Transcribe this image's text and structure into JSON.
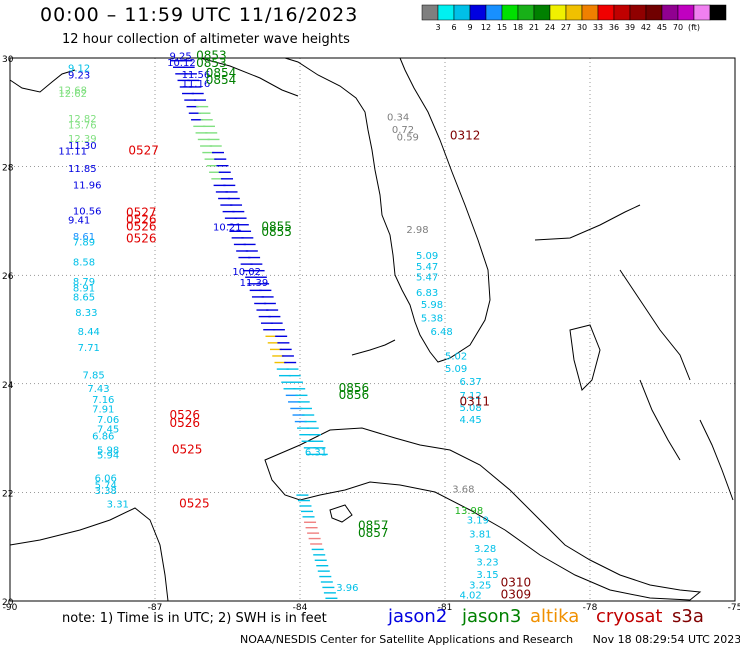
{
  "title": "00:00  –  11:59 UTC 11/16/2023",
  "subtitle": "12 hour collection of altimeter wave heights",
  "colorbar": {
    "colors": [
      "#7f7f7f",
      "#00f0f0",
      "#00c0e8",
      "#0000e0",
      "#1890ff",
      "#00e000",
      "#18b018",
      "#008000",
      "#f0f000",
      "#f0c000",
      "#f08000",
      "#f00000",
      "#c00000",
      "#900000",
      "#700000",
      "#900090",
      "#c000c0",
      "#f080f0",
      "#000000"
    ],
    "labels": [
      "3",
      "6",
      "9",
      "12",
      "15",
      "18",
      "21",
      "24",
      "27",
      "30",
      "33",
      "36",
      "39",
      "42",
      "45",
      "70",
      "(ft)"
    ]
  },
  "axes": {
    "lat_ticks": [
      "30",
      "28",
      "26",
      "24",
      "22",
      "20"
    ],
    "lon_ticks": [
      "-90",
      "-87",
      "-84",
      "-81",
      "-78",
      "-75"
    ],
    "grid": true
  },
  "note": "note:  1) Time is in UTC;  2) SWH is in feet",
  "legend": [
    {
      "label": "jason2",
      "color": "#0000e0"
    },
    {
      "label": "jason3",
      "color": "#008000"
    },
    {
      "label": "altika",
      "color": "#f09000"
    },
    {
      "label": "cryosat",
      "color": "#c00000"
    },
    {
      "label": "s3a",
      "color": "#800000"
    }
  ],
  "footer": {
    "source": "NOAA/NESDIS Center for Satellite Applications and Research",
    "timestamp": "Nov 18 08:29:54 UTC 2023"
  },
  "chart_data": {
    "type": "map",
    "region": {
      "lon_range": [
        -90,
        -75
      ],
      "lat_range": [
        20,
        30
      ]
    },
    "pass_times": [
      {
        "text": "0853",
        "lon": -86.15,
        "lat": 29.97,
        "color": "#008000"
      },
      {
        "text": "0853",
        "lon": -86.15,
        "lat": 29.83,
        "color": "#008000"
      },
      {
        "text": "0854",
        "lon": -85.95,
        "lat": 29.65,
        "color": "#008000"
      },
      {
        "text": "0854",
        "lon": -85.95,
        "lat": 29.52,
        "color": "#008000"
      },
      {
        "text": "0527",
        "lon": -87.55,
        "lat": 28.22,
        "color": "#e00000"
      },
      {
        "text": "0527",
        "lon": -87.6,
        "lat": 27.08,
        "color": "#e00000"
      },
      {
        "text": "0526",
        "lon": -87.6,
        "lat": 26.95,
        "color": "#e00000"
      },
      {
        "text": "0526",
        "lon": -87.6,
        "lat": 26.82,
        "color": "#e00000"
      },
      {
        "text": "0526",
        "lon": -87.6,
        "lat": 26.6,
        "color": "#e00000"
      },
      {
        "text": "0855",
        "lon": -84.8,
        "lat": 26.82,
        "color": "#008000"
      },
      {
        "text": "0855",
        "lon": -84.8,
        "lat": 26.72,
        "color": "#008000"
      },
      {
        "text": "0526",
        "lon": -86.7,
        "lat": 23.35,
        "color": "#e00000"
      },
      {
        "text": "0526",
        "lon": -86.7,
        "lat": 23.2,
        "color": "#e00000"
      },
      {
        "text": "0525",
        "lon": -86.65,
        "lat": 22.72,
        "color": "#e00000"
      },
      {
        "text": "0525",
        "lon": -86.5,
        "lat": 21.72,
        "color": "#e00000"
      },
      {
        "text": "0856",
        "lon": -83.2,
        "lat": 23.85,
        "color": "#008000"
      },
      {
        "text": "0856",
        "lon": -83.2,
        "lat": 23.72,
        "color": "#008000"
      },
      {
        "text": "0857",
        "lon": -82.8,
        "lat": 21.32,
        "color": "#008000"
      },
      {
        "text": "0857",
        "lon": -82.8,
        "lat": 21.18,
        "color": "#008000"
      },
      {
        "text": "0312",
        "lon": -80.9,
        "lat": 28.5,
        "color": "#800000"
      },
      {
        "text": "0311",
        "lon": -80.7,
        "lat": 23.6,
        "color": "#800000"
      },
      {
        "text": "0310",
        "lon": -79.85,
        "lat": 20.27,
        "color": "#800000"
      },
      {
        "text": "0309",
        "lon": -79.85,
        "lat": 20.05,
        "color": "#800000"
      }
    ],
    "wave_heights": [
      {
        "text": "9.25",
        "lon": -86.7,
        "lat": 29.97,
        "color": "#0000e0"
      },
      {
        "text": "10.12",
        "lon": -86.75,
        "lat": 29.85,
        "color": "#0000e0"
      },
      {
        "text": "9.12",
        "lon": -88.8,
        "lat": 29.75,
        "color": "#00c0e8"
      },
      {
        "text": "9.23",
        "lon": -88.8,
        "lat": 29.62,
        "color": "#0000e0"
      },
      {
        "text": "11.56",
        "lon": -86.45,
        "lat": 29.63,
        "color": "#0000e0"
      },
      {
        "text": "11.16",
        "lon": -86.45,
        "lat": 29.47,
        "color": "#0000e0"
      },
      {
        "text": "12.68",
        "lon": -89.0,
        "lat": 29.35,
        "color": "#80e080"
      },
      {
        "text": "12.62",
        "lon": -89.0,
        "lat": 29.28,
        "color": "#80e080"
      },
      {
        "text": "12.82",
        "lon": -88.8,
        "lat": 28.82,
        "color": "#80e080"
      },
      {
        "text": "13.76",
        "lon": -88.8,
        "lat": 28.7,
        "color": "#80e080"
      },
      {
        "text": "12.39",
        "lon": -88.8,
        "lat": 28.45,
        "color": "#80e080"
      },
      {
        "text": "11.30",
        "lon": -88.8,
        "lat": 28.32,
        "color": "#0000e0"
      },
      {
        "text": "11.11",
        "lon": -89.0,
        "lat": 28.22,
        "color": "#0000e0"
      },
      {
        "text": "11.85",
        "lon": -88.8,
        "lat": 27.9,
        "color": "#0000e0"
      },
      {
        "text": "11.96",
        "lon": -88.7,
        "lat": 27.6,
        "color": "#0000e0"
      },
      {
        "text": "10.56",
        "lon": -88.7,
        "lat": 27.12,
        "color": "#0000e0"
      },
      {
        "text": "9.41",
        "lon": -88.8,
        "lat": 26.95,
        "color": "#0000e0"
      },
      {
        "text": "8.61",
        "lon": -88.7,
        "lat": 26.65,
        "color": "#1890ff"
      },
      {
        "text": "7.89",
        "lon": -88.7,
        "lat": 26.55,
        "color": "#00c0e8"
      },
      {
        "text": "8.58",
        "lon": -88.7,
        "lat": 26.18,
        "color": "#00c0e8"
      },
      {
        "text": "8.79",
        "lon": -88.7,
        "lat": 25.82,
        "color": "#00c0e8"
      },
      {
        "text": "8.91",
        "lon": -88.7,
        "lat": 25.7,
        "color": "#00c0e8"
      },
      {
        "text": "8.65",
        "lon": -88.7,
        "lat": 25.53,
        "color": "#00c0e8"
      },
      {
        "text": "8.33",
        "lon": -88.65,
        "lat": 25.25,
        "color": "#00c0e8"
      },
      {
        "text": "8.44",
        "lon": -88.6,
        "lat": 24.9,
        "color": "#00c0e8"
      },
      {
        "text": "7.71",
        "lon": -88.6,
        "lat": 24.6,
        "color": "#00c0e8"
      },
      {
        "text": "7.85",
        "lon": -88.5,
        "lat": 24.1,
        "color": "#00c0e8"
      },
      {
        "text": "7.43",
        "lon": -88.4,
        "lat": 23.85,
        "color": "#00c0e8"
      },
      {
        "text": "7.16",
        "lon": -88.3,
        "lat": 23.65,
        "color": "#00c0e8"
      },
      {
        "text": "7.91",
        "lon": -88.3,
        "lat": 23.47,
        "color": "#00c0e8"
      },
      {
        "text": "7.06",
        "lon": -88.2,
        "lat": 23.28,
        "color": "#00c0e8"
      },
      {
        "text": "7.45",
        "lon": -88.2,
        "lat": 23.1,
        "color": "#00c0e8"
      },
      {
        "text": "6.86",
        "lon": -88.3,
        "lat": 22.97,
        "color": "#00c0e8"
      },
      {
        "text": "5.98",
        "lon": -88.2,
        "lat": 22.72,
        "color": "#00c0e8"
      },
      {
        "text": "5.94",
        "lon": -88.2,
        "lat": 22.62,
        "color": "#00c0e8"
      },
      {
        "text": "6.06",
        "lon": -88.25,
        "lat": 22.2,
        "color": "#00c0e8"
      },
      {
        "text": "5.74",
        "lon": -88.25,
        "lat": 22.07,
        "color": "#00c0e8"
      },
      {
        "text": "3.38",
        "lon": -88.25,
        "lat": 21.97,
        "color": "#00c0e8"
      },
      {
        "text": "3.31",
        "lon": -88.0,
        "lat": 21.72,
        "color": "#00c0e8"
      },
      {
        "text": "0.34",
        "lon": -82.2,
        "lat": 28.85,
        "color": "#7f7f7f"
      },
      {
        "text": "0.72",
        "lon": -82.1,
        "lat": 28.62,
        "color": "#7f7f7f"
      },
      {
        "text": "0.59",
        "lon": -82.0,
        "lat": 28.48,
        "color": "#7f7f7f"
      },
      {
        "text": "10.21",
        "lon": -85.8,
        "lat": 26.82,
        "color": "#0000e0"
      },
      {
        "text": "10.02",
        "lon": -85.4,
        "lat": 26.0,
        "color": "#0000e0"
      },
      {
        "text": "11.39",
        "lon": -85.25,
        "lat": 25.8,
        "color": "#0000e0"
      },
      {
        "text": "2.98",
        "lon": -81.8,
        "lat": 26.78,
        "color": "#7f7f7f"
      },
      {
        "text": "5.09",
        "lon": -81.6,
        "lat": 26.3,
        "color": "#00c0e8"
      },
      {
        "text": "5.47",
        "lon": -81.6,
        "lat": 26.1,
        "color": "#00c0e8"
      },
      {
        "text": "5.47",
        "lon": -81.6,
        "lat": 25.9,
        "color": "#00c0e8"
      },
      {
        "text": "6.83",
        "lon": -81.6,
        "lat": 25.62,
        "color": "#00c0e8"
      },
      {
        "text": "5.98",
        "lon": -81.5,
        "lat": 25.4,
        "color": "#00c0e8"
      },
      {
        "text": "5.38",
        "lon": -81.5,
        "lat": 25.15,
        "color": "#00c0e8"
      },
      {
        "text": "6.48",
        "lon": -81.3,
        "lat": 24.9,
        "color": "#00c0e8"
      },
      {
        "text": "5.02",
        "lon": -81.0,
        "lat": 24.45,
        "color": "#00c0e8"
      },
      {
        "text": "5.09",
        "lon": -81.0,
        "lat": 24.22,
        "color": "#00c0e8"
      },
      {
        "text": "6.37",
        "lon": -80.7,
        "lat": 23.98,
        "color": "#00c0e8"
      },
      {
        "text": "7.12",
        "lon": -80.7,
        "lat": 23.72,
        "color": "#00c0e8"
      },
      {
        "text": "5.08",
        "lon": -80.7,
        "lat": 23.5,
        "color": "#00c0e8"
      },
      {
        "text": "4.45",
        "lon": -80.7,
        "lat": 23.28,
        "color": "#00c0e8"
      },
      {
        "text": "6.31",
        "lon": -83.9,
        "lat": 22.68,
        "color": "#00c0e8"
      },
      {
        "text": "3.68",
        "lon": -80.85,
        "lat": 22.0,
        "color": "#7f7f7f"
      },
      {
        "text": "13.98",
        "lon": -80.8,
        "lat": 21.6,
        "color": "#18b018"
      },
      {
        "text": "3.19",
        "lon": -80.55,
        "lat": 21.43,
        "color": "#00c0e8"
      },
      {
        "text": "3.81",
        "lon": -80.5,
        "lat": 21.17,
        "color": "#00c0e8"
      },
      {
        "text": "3.28",
        "lon": -80.4,
        "lat": 20.9,
        "color": "#00c0e8"
      },
      {
        "text": "3.23",
        "lon": -80.35,
        "lat": 20.65,
        "color": "#00c0e8"
      },
      {
        "text": "3.15",
        "lon": -80.35,
        "lat": 20.42,
        "color": "#00c0e8"
      },
      {
        "text": "3.25",
        "lon": -80.5,
        "lat": 20.23,
        "color": "#00c0e8"
      },
      {
        "text": "4.02",
        "lon": -80.7,
        "lat": 20.05,
        "color": "#00c0e8"
      },
      {
        "text": "3.96",
        "lon": -83.25,
        "lat": 20.18,
        "color": "#00c0e8"
      }
    ],
    "tracks": [
      {
        "name": "jason2-track",
        "start": [
          -86.55,
          29.95
        ],
        "end": [
          -83.75,
          22.7
        ],
        "step_lat": 0.12,
        "colors": [
          "#0000e0",
          "#0000e0",
          "#80e080",
          "#80e080",
          "#0000e0",
          "#0000e0",
          "#0000e0",
          "#0000e0",
          "#0000e0",
          "#f0c000",
          "#00c0e8",
          "#1890ff",
          "#00c0e8",
          "#00c0e8"
        ]
      },
      {
        "name": "jason3-track",
        "start": [
          -86.35,
          29.95
        ],
        "end": [
          -83.55,
          22.7
        ],
        "step_lat": 0.12,
        "colors": [
          "#0000e0",
          "#80e080",
          "#0000e0",
          "#0000e0",
          "#0000e0",
          "#0000e0",
          "#0000e0",
          "#00c0e8",
          "#00c0e8",
          "#00c0e8"
        ]
      },
      {
        "name": "cuba-south-track",
        "start": [
          -83.95,
          21.95
        ],
        "end": [
          -83.35,
          20.05
        ],
        "step_lat": 0.1,
        "colors": [
          "#00c0e8",
          "#f08080",
          "#00c0e8",
          "#00c0e8",
          "#00c0e8"
        ]
      }
    ]
  }
}
